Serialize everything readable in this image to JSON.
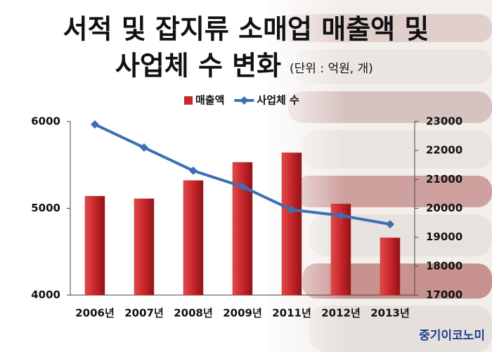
{
  "chart_data": {
    "type": "bar-line",
    "title": [
      "서적 및 잡지류 소매업 매출액 및",
      "사업체 수 변화"
    ],
    "subtitle": "(단위 : 억원, 개)",
    "source": "중기이코노미",
    "categories": [
      "2006년",
      "2007년",
      "2008년",
      "2009년",
      "2011년",
      "2012년",
      "2013년"
    ],
    "series": [
      {
        "name": "매출액",
        "type": "bar",
        "color": "#c8262b",
        "values": [
          5140,
          5110,
          5320,
          5530,
          5640,
          5050,
          4660
        ]
      },
      {
        "name": "사업체 수",
        "type": "line",
        "axis": "y2",
        "color": "#3d6fb5",
        "values": [
          22900,
          22100,
          21300,
          20750,
          19950,
          19750,
          19450
        ]
      }
    ],
    "ylim": [
      4000,
      6000
    ],
    "yticks": [
      4000,
      5000,
      6000
    ],
    "y2lim": [
      17000,
      23000
    ],
    "y2ticks": [
      17000,
      18000,
      19000,
      20000,
      21000,
      22000,
      23000
    ],
    "grid": false
  }
}
